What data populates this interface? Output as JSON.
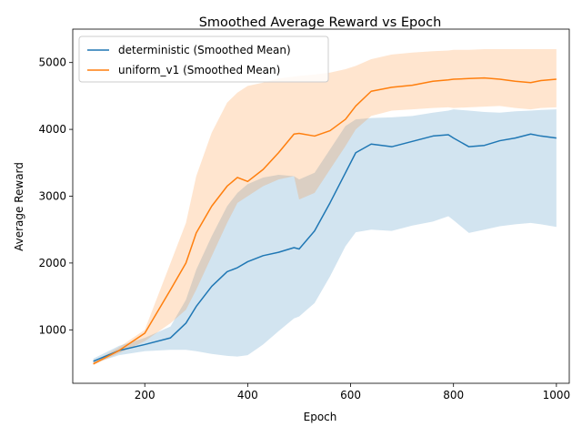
{
  "chart_data": {
    "type": "line",
    "title": "Smoothed Average Reward vs Epoch",
    "xlabel": "Epoch",
    "ylabel": "Average Reward",
    "xlim": [
      60,
      1025
    ],
    "ylim": [
      200,
      5500
    ],
    "xticks": [
      200,
      400,
      600,
      800,
      1000
    ],
    "yticks": [
      1000,
      2000,
      3000,
      4000,
      5000
    ],
    "grid": false,
    "legend_position": "upper-left",
    "x": [
      100,
      150,
      200,
      250,
      280,
      300,
      330,
      360,
      380,
      400,
      430,
      460,
      490,
      500,
      530,
      560,
      590,
      610,
      640,
      680,
      720,
      760,
      790,
      800,
      830,
      860,
      890,
      920,
      950,
      970,
      1000
    ],
    "series": [
      {
        "name": "deterministic (Smoothed Mean)",
        "color": "#1f77b4",
        "band_color": "#1f77b4",
        "band_opacity": 0.2,
        "mean": [
          530,
          690,
          780,
          880,
          1100,
          1350,
          1650,
          1870,
          1930,
          2020,
          2110,
          2160,
          2230,
          2210,
          2480,
          2900,
          3350,
          3650,
          3780,
          3740,
          3820,
          3900,
          3920,
          3870,
          3740,
          3760,
          3830,
          3870,
          3930,
          3900,
          3870
        ],
        "lower": [
          500,
          620,
          680,
          700,
          700,
          680,
          640,
          610,
          600,
          620,
          780,
          980,
          1170,
          1200,
          1400,
          1800,
          2250,
          2460,
          2500,
          2480,
          2560,
          2620,
          2700,
          2640,
          2450,
          2500,
          2550,
          2580,
          2600,
          2580,
          2540
        ],
        "upper": [
          570,
          760,
          880,
          1050,
          1450,
          1900,
          2400,
          2850,
          3050,
          3180,
          3280,
          3320,
          3300,
          3250,
          3350,
          3700,
          4050,
          4150,
          4170,
          4180,
          4200,
          4250,
          4280,
          4300,
          4280,
          4260,
          4250,
          4270,
          4280,
          4290,
          4300
        ]
      },
      {
        "name": "uniform_v1 (Smoothed Mean)",
        "color": "#ff7f0e",
        "band_color": "#ff7f0e",
        "band_opacity": 0.2,
        "mean": [
          490,
          690,
          950,
          1600,
          2000,
          2450,
          2850,
          3150,
          3280,
          3220,
          3400,
          3650,
          3930,
          3940,
          3900,
          3980,
          4150,
          4350,
          4570,
          4630,
          4660,
          4720,
          4740,
          4750,
          4760,
          4770,
          4750,
          4720,
          4700,
          4730,
          4750
        ],
        "lower": [
          470,
          650,
          830,
          1100,
          1300,
          1600,
          2100,
          2600,
          2900,
          3000,
          3150,
          3250,
          3300,
          2950,
          3050,
          3400,
          3750,
          4000,
          4200,
          4280,
          4300,
          4320,
          4330,
          4320,
          4330,
          4340,
          4350,
          4320,
          4300,
          4320,
          4330
        ],
        "upper": [
          520,
          740,
          1000,
          2000,
          2600,
          3300,
          3950,
          4400,
          4550,
          4650,
          4700,
          4760,
          4790,
          4800,
          4820,
          4850,
          4900,
          4950,
          5050,
          5120,
          5150,
          5170,
          5180,
          5190,
          5190,
          5200,
          5200,
          5200,
          5200,
          5200,
          5200
        ]
      }
    ]
  }
}
